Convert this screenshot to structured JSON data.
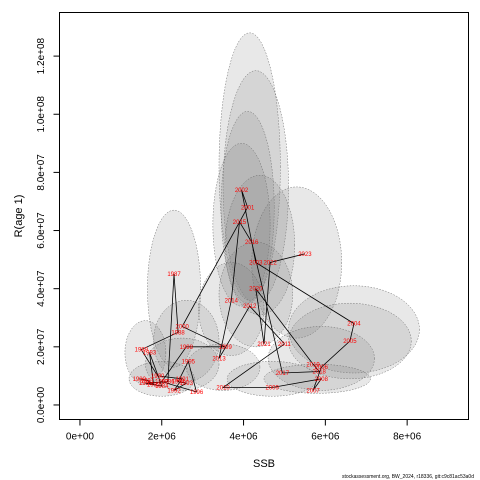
{
  "chart_data": {
    "type": "scatter",
    "xlabel": "SSB",
    "ylabel": "R(age 1)",
    "xlim": [
      -500000,
      9500000
    ],
    "ylim": [
      -5000000,
      135000000
    ],
    "x_ticks": [
      0,
      2000000,
      4000000,
      6000000,
      8000000
    ],
    "x_tick_labels": [
      "0e+00",
      "2e+06",
      "4e+06",
      "6e+06",
      "8e+06"
    ],
    "y_ticks": [
      0,
      20000000,
      40000000,
      60000000,
      80000000,
      100000000,
      120000000
    ],
    "y_tick_labels": [
      "0.0e+00",
      "2.0e+07",
      "4.0e+07",
      "6.0e+07",
      "8.0e+07",
      "1.0e+08",
      "1.2e+08"
    ],
    "point_color": "#ff0000",
    "ellipse_fill": "rgba(128,128,128,0.18)",
    "ellipse_stroke": "#666666",
    "points": [
      {
        "year": "1980",
        "ssb": 1450000,
        "rec": 9000000
      },
      {
        "year": "1981",
        "ssb": 1650000,
        "rec": 8500000
      },
      {
        "year": "1982",
        "ssb": 1800000,
        "rec": 7000000
      },
      {
        "year": "1983",
        "ssb": 1700000,
        "rec": 18000000
      },
      {
        "year": "1984",
        "ssb": 2000000,
        "rec": 6500000
      },
      {
        "year": "1985",
        "ssb": 1600000,
        "rec": 7500000
      },
      {
        "year": "1986",
        "ssb": 2150000,
        "rec": 8000000
      },
      {
        "year": "1987",
        "ssb": 2300000,
        "rec": 45000000
      },
      {
        "year": "1988",
        "ssb": 2400000,
        "rec": 25000000
      },
      {
        "year": "1989",
        "ssb": 1500000,
        "rec": 19000000
      },
      {
        "year": "1990",
        "ssb": 1900000,
        "rec": 10000000
      },
      {
        "year": "1991",
        "ssb": 2500000,
        "rec": 9000000
      },
      {
        "year": "1992",
        "ssb": 2300000,
        "rec": 5000000
      },
      {
        "year": "1993",
        "ssb": 2600000,
        "rec": 7500000
      },
      {
        "year": "1994",
        "ssb": 2400000,
        "rec": 8000000
      },
      {
        "year": "1995",
        "ssb": 2650000,
        "rec": 15000000
      },
      {
        "year": "1996",
        "ssb": 2850000,
        "rec": 4500000
      },
      {
        "year": "1997",
        "ssb": 2000000,
        "rec": 8000000
      },
      {
        "year": "1998",
        "ssb": 2600000,
        "rec": 20000000
      },
      {
        "year": "1999",
        "ssb": 3550000,
        "rec": 20000000
      },
      {
        "year": "2000",
        "ssb": 2500000,
        "rec": 27000000
      },
      {
        "year": "2001",
        "ssb": 4100000,
        "rec": 68000000
      },
      {
        "year": "2002",
        "ssb": 3950000,
        "rec": 74000000
      },
      {
        "year": "2003",
        "ssb": 4300000,
        "rec": 49000000
      },
      {
        "year": "2004",
        "ssb": 6700000,
        "rec": 28000000
      },
      {
        "year": "2005",
        "ssb": 6600000,
        "rec": 22000000
      },
      {
        "year": "2006",
        "ssb": 5900000,
        "rec": 13000000
      },
      {
        "year": "2007",
        "ssb": 5700000,
        "rec": 5000000
      },
      {
        "year": "2008",
        "ssb": 5900000,
        "rec": 9000000
      },
      {
        "year": "2009",
        "ssb": 4700000,
        "rec": 6000000
      },
      {
        "year": "2010",
        "ssb": 3500000,
        "rec": 6000000
      },
      {
        "year": "2011",
        "ssb": 5000000,
        "rec": 21000000
      },
      {
        "year": "2012",
        "ssb": 4150000,
        "rec": 34000000
      },
      {
        "year": "2013",
        "ssb": 3400000,
        "rec": 16000000
      },
      {
        "year": "2014",
        "ssb": 3700000,
        "rec": 36000000
      },
      {
        "year": "2015",
        "ssb": 3900000,
        "rec": 63000000
      },
      {
        "year": "2016",
        "ssb": 4200000,
        "rec": 56000000
      },
      {
        "year": "2017",
        "ssb": 4950000,
        "rec": 11000000
      },
      {
        "year": "2018",
        "ssb": 5850000,
        "rec": 11500000
      },
      {
        "year": "2019",
        "ssb": 5700000,
        "rec": 14000000
      },
      {
        "year": "2020",
        "ssb": 4300000,
        "rec": 40000000
      },
      {
        "year": "2021",
        "ssb": 4500000,
        "rec": 21000000
      },
      {
        "year": "2022",
        "ssb": 4650000,
        "rec": 49000000
      },
      {
        "year": "2023",
        "ssb": 5500000,
        "rec": 52000000
      }
    ],
    "path_order": [
      "1980",
      "1981",
      "1982",
      "1983",
      "1984",
      "1985",
      "1986",
      "1987",
      "1988",
      "1989",
      "1990",
      "1991",
      "1992",
      "1993",
      "1994",
      "1995",
      "1996",
      "1997",
      "1998",
      "1999",
      "2000",
      "2001",
      "2002",
      "2003",
      "2004",
      "2005",
      "2006",
      "2007",
      "2008",
      "2009",
      "2010",
      "2011",
      "2012",
      "2013",
      "2014",
      "2015",
      "2016",
      "2017",
      "2018",
      "2019",
      "2020",
      "2021",
      "2022",
      "2023"
    ],
    "ellipses": [
      {
        "cx": 4150000,
        "cy": 82000000,
        "rx": 750000,
        "ry": 46000000
      },
      {
        "cx": 4300000,
        "cy": 75000000,
        "rx": 800000,
        "ry": 40000000
      },
      {
        "cx": 4100000,
        "cy": 68000000,
        "rx": 650000,
        "ry": 33000000
      },
      {
        "cx": 3950000,
        "cy": 62000000,
        "rx": 700000,
        "ry": 28000000
      },
      {
        "cx": 4400000,
        "cy": 55000000,
        "rx": 850000,
        "ry": 24000000
      },
      {
        "cx": 5300000,
        "cy": 49000000,
        "rx": 1100000,
        "ry": 26000000
      },
      {
        "cx": 2300000,
        "cy": 40000000,
        "rx": 650000,
        "ry": 27000000
      },
      {
        "cx": 6700000,
        "cy": 26000000,
        "rx": 1600000,
        "ry": 15000000
      },
      {
        "cx": 6600000,
        "cy": 22000000,
        "rx": 1500000,
        "ry": 13000000
      },
      {
        "cx": 5900000,
        "cy": 16000000,
        "rx": 1300000,
        "ry": 11000000
      },
      {
        "cx": 4300000,
        "cy": 38000000,
        "rx": 900000,
        "ry": 18000000
      },
      {
        "cx": 3700000,
        "cy": 33000000,
        "rx": 800000,
        "ry": 16000000
      },
      {
        "cx": 2600000,
        "cy": 22000000,
        "rx": 800000,
        "ry": 14000000
      },
      {
        "cx": 1600000,
        "cy": 18000000,
        "rx": 500000,
        "ry": 11000000
      },
      {
        "cx": 2500000,
        "cy": 14000000,
        "rx": 900000,
        "ry": 9000000
      },
      {
        "cx": 3500000,
        "cy": 13000000,
        "rx": 900000,
        "ry": 8000000
      },
      {
        "cx": 2000000,
        "cy": 9000000,
        "rx": 800000,
        "ry": 6000000
      },
      {
        "cx": 4700000,
        "cy": 9000000,
        "rx": 1100000,
        "ry": 6000000
      },
      {
        "cx": 5800000,
        "cy": 9000000,
        "rx": 1300000,
        "ry": 5000000
      }
    ]
  },
  "footer": {
    "text": "stockassessment.org, BW_2024, r18336, git:c9c81ac53a0d"
  }
}
